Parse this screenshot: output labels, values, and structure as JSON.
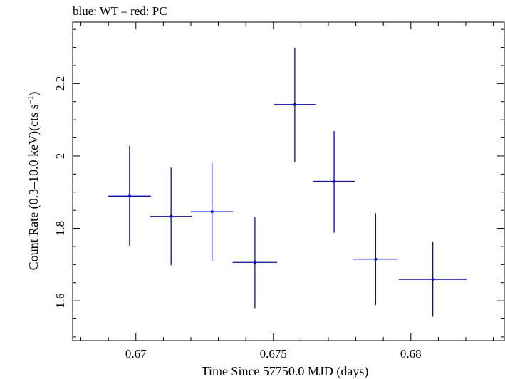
{
  "chart_data": {
    "type": "scatter",
    "title": "blue: WT – red: PC",
    "xlabel": "Time Since 57750.0 MJD (days)",
    "ylabel": "Count Rate (0.3–10.0 keV)(cts s",
    "ylabel_sup": "−1",
    "ylabel_close": ")",
    "xlim": [
      0.6677,
      0.6834
    ],
    "ylim": [
      1.49,
      2.37
    ],
    "x_ticks": [
      0.67,
      0.675,
      0.68
    ],
    "x_tick_labels": [
      "0.67",
      "0.675",
      "0.68"
    ],
    "y_ticks": [
      1.6,
      1.8,
      2.0,
      2.2
    ],
    "y_tick_labels": [
      "1.6",
      "1.8",
      "2",
      "2.2"
    ],
    "x_minor_step": 0.001,
    "y_minor_step": 0.05,
    "grid": false,
    "series": [
      {
        "color": "#0000ff",
        "points": [
          {
            "x": 0.66977,
            "y": 1.889,
            "xerr": 0.00077,
            "ylo": 1.751,
            "yhi": 2.028
          },
          {
            "x": 0.67128,
            "y": 1.833,
            "xerr": 0.00076,
            "ylo": 1.698,
            "yhi": 1.968
          },
          {
            "x": 0.67277,
            "y": 1.846,
            "xerr": 0.00077,
            "ylo": 1.711,
            "yhi": 1.981
          },
          {
            "x": 0.67433,
            "y": 1.706,
            "xerr": 0.00081,
            "ylo": 1.578,
            "yhi": 1.832
          },
          {
            "x": 0.67578,
            "y": 2.142,
            "xerr": 0.00075,
            "ylo": 1.983,
            "yhi": 2.299
          },
          {
            "x": 0.67721,
            "y": 1.93,
            "xerr": 0.00075,
            "ylo": 1.788,
            "yhi": 2.069
          },
          {
            "x": 0.67872,
            "y": 1.715,
            "xerr": 0.00081,
            "ylo": 1.588,
            "yhi": 1.842
          },
          {
            "x": 0.6808,
            "y": 1.659,
            "xerr": 0.00124,
            "ylo": 1.556,
            "yhi": 1.763
          }
        ]
      }
    ]
  }
}
